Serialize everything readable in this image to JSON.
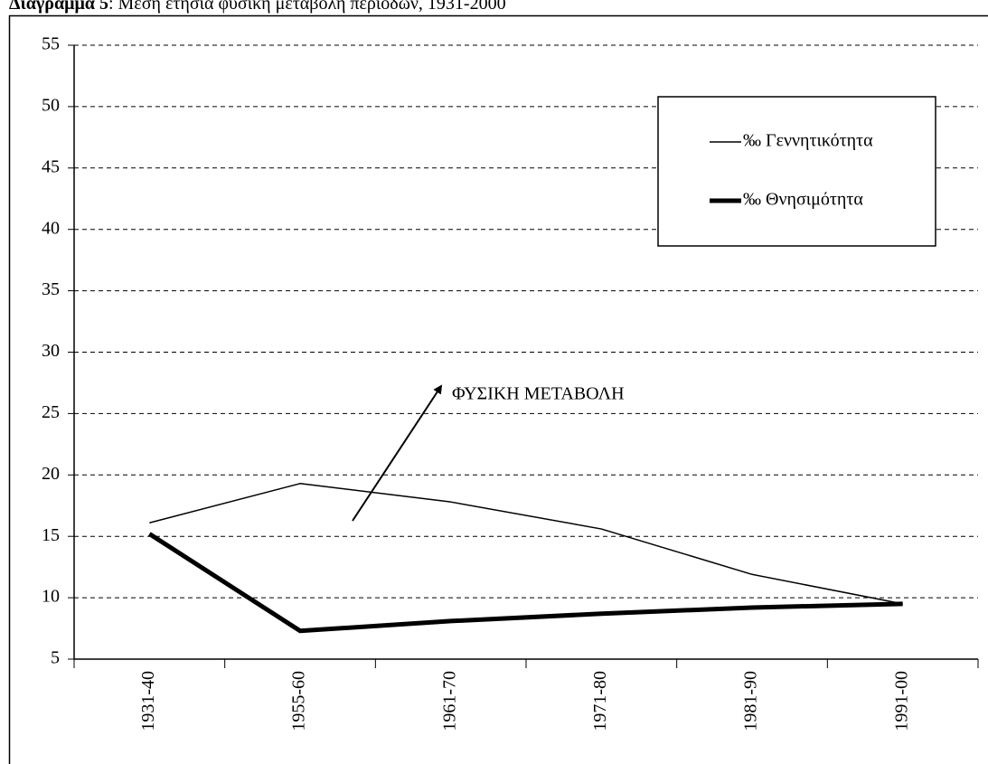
{
  "chart_data": {
    "type": "line",
    "title": {
      "label": "Διάγραμμα 5",
      "text": ": Μέση ετήσια φυσική μεταβολή περιόδων, 1931-2000"
    },
    "categories": [
      "1931-40",
      "1955-60",
      "1961-70",
      "1971-80",
      "1981-90",
      "1991-00"
    ],
    "series": [
      {
        "name": "‰ Γεννητικότητα",
        "color": "#000000",
        "width": 1.5,
        "values": [
          16.1,
          19.3,
          17.8,
          15.6,
          11.9,
          9.5
        ]
      },
      {
        "name": "‰ Θνησιμότητα",
        "color": "#000000",
        "width": 5,
        "values": [
          15.2,
          7.3,
          8.1,
          8.7,
          9.2,
          9.5
        ]
      }
    ],
    "annotation": "ΦΥΣΙΚΗ ΜΕΤΑΒΟΛΗ",
    "ylim": [
      5,
      55
    ],
    "yticks": [
      5,
      10,
      15,
      20,
      25,
      30,
      35,
      40,
      45,
      50,
      55
    ],
    "grid": true,
    "legend": "top-right"
  }
}
